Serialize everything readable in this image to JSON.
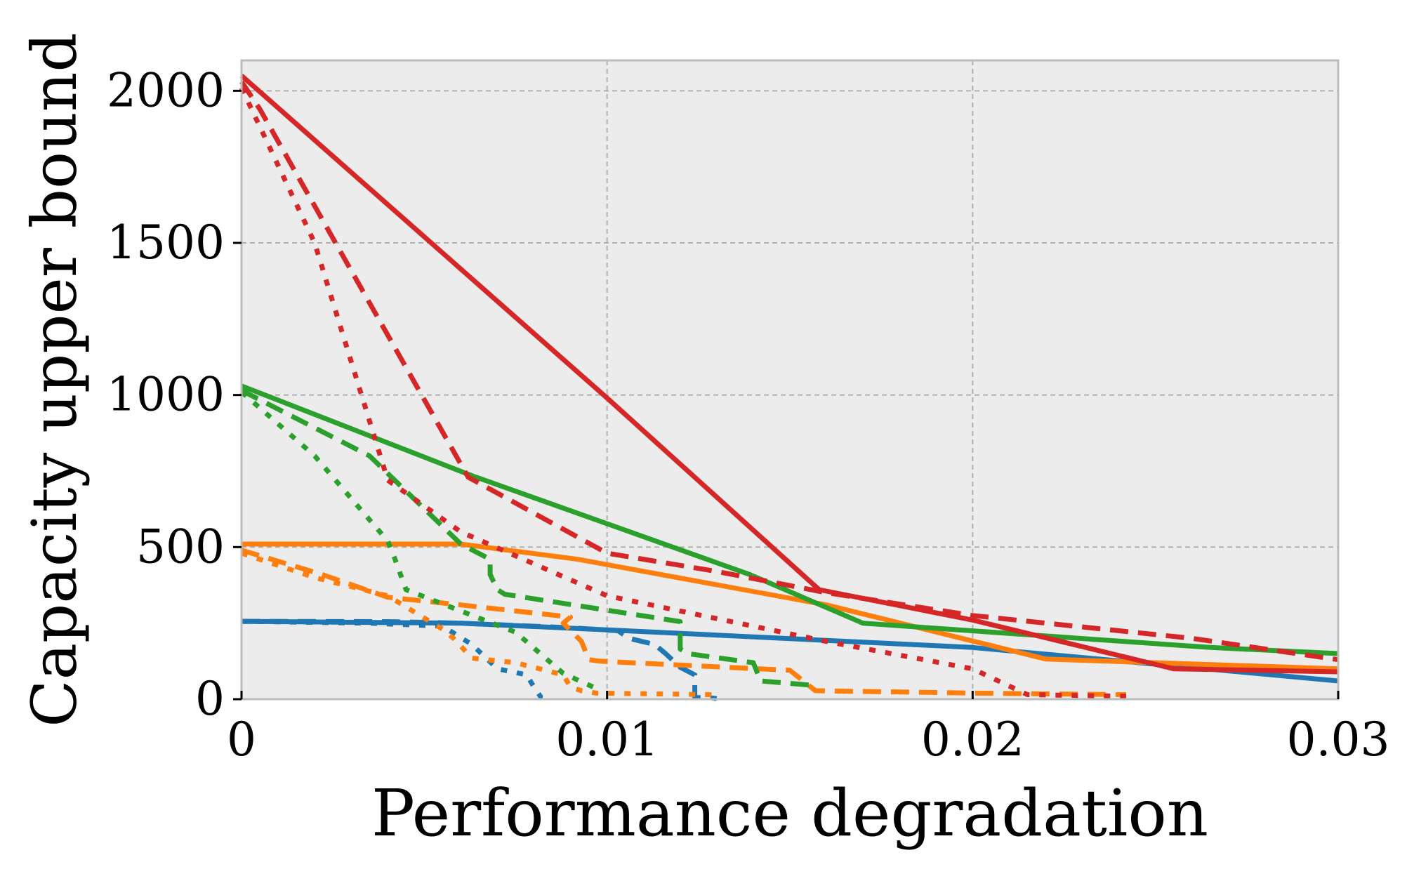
{
  "chart_data": {
    "type": "line",
    "title": "",
    "xlabel": "Performance degradation",
    "ylabel": "Capacity upper bound",
    "xlim": [
      0,
      0.03
    ],
    "ylim": [
      0,
      2100
    ],
    "xticks": [
      0,
      0.01,
      0.02,
      0.03
    ],
    "xtick_labels": [
      "0",
      "0.01",
      "0.02",
      "0.03"
    ],
    "yticks": [
      0,
      500,
      1000,
      1500,
      2000
    ],
    "ytick_labels": [
      "0",
      "500",
      "1000",
      "1500",
      "2000"
    ],
    "grid": true,
    "background_color": "#ececec",
    "series": [
      {
        "name": "blue-solid",
        "color": "#1f77b4",
        "style": "solid",
        "x": [
          0,
          0.006,
          0.01,
          0.02,
          0.03
        ],
        "y": [
          256,
          250,
          228,
          170,
          60
        ]
      },
      {
        "name": "blue-dashed",
        "color": "#1f77b4",
        "style": "dashed",
        "x": [
          0,
          0.004,
          0.006,
          0.009,
          0.0103,
          0.0106,
          0.0113,
          0.0116,
          0.012,
          0.0124,
          0.0124,
          0.0126,
          0.0128,
          0.013
        ],
        "y": [
          256,
          255,
          250,
          235,
          225,
          200,
          180,
          150,
          105,
          80,
          5,
          5,
          5,
          2
        ]
      },
      {
        "name": "blue-dotted",
        "color": "#1f77b4",
        "style": "dotted",
        "x": [
          0,
          0.0035,
          0.0055,
          0.0063,
          0.007,
          0.0078,
          0.008,
          0.0082,
          0.0085
        ],
        "y": [
          256,
          250,
          240,
          180,
          100,
          80,
          40,
          5,
          2
        ]
      },
      {
        "name": "orange-solid",
        "color": "#ff7f0e",
        "style": "solid",
        "x": [
          0,
          0.006,
          0.0092,
          0.016,
          0.022,
          0.03
        ],
        "y": [
          510,
          510,
          460,
          310,
          132,
          100
        ]
      },
      {
        "name": "orange-dashed",
        "color": "#ff7f0e",
        "style": "dashed",
        "x": [
          0,
          0.0022,
          0.004,
          0.006,
          0.009,
          0.0088,
          0.0093,
          0.0095,
          0.0098,
          0.011,
          0.015,
          0.0157,
          0.02,
          0.0215,
          0.0242
        ],
        "y": [
          490,
          410,
          335,
          310,
          270,
          250,
          190,
          130,
          125,
          118,
          95,
          28,
          20,
          18,
          15
        ]
      },
      {
        "name": "orange-dotted",
        "color": "#ff7f0e",
        "style": "dotted",
        "x": [
          0,
          0.002,
          0.004,
          0.0055,
          0.0058,
          0.0063,
          0.0075,
          0.0088,
          0.009,
          0.0093,
          0.0097,
          0.0128,
          0.013
        ],
        "y": [
          480,
          400,
          340,
          230,
          200,
          135,
          120,
          80,
          40,
          28,
          20,
          15,
          10
        ]
      },
      {
        "name": "green-solid",
        "color": "#2ca02c",
        "style": "solid",
        "x": [
          0,
          0.0063,
          0.0139,
          0.017,
          0.0265,
          0.03
        ],
        "y": [
          1030,
          735,
          410,
          250,
          170,
          150
        ]
      },
      {
        "name": "green-dashed",
        "color": "#2ca02c",
        "style": "dashed",
        "x": [
          0,
          0.0035,
          0.006,
          0.0068,
          0.0068,
          0.007,
          0.0072,
          0.012,
          0.012,
          0.0122,
          0.014,
          0.0142,
          0.0157
        ],
        "y": [
          1015,
          800,
          510,
          460,
          410,
          360,
          345,
          255,
          165,
          150,
          120,
          60,
          45
        ]
      },
      {
        "name": "green-dotted",
        "color": "#2ca02c",
        "style": "dotted",
        "x": [
          0,
          0.002,
          0.004,
          0.0042,
          0.0045,
          0.0075,
          0.0088,
          0.0098
        ],
        "y": [
          1010,
          800,
          520,
          460,
          360,
          220,
          85,
          30
        ]
      },
      {
        "name": "red-solid",
        "color": "#d62728",
        "style": "solid",
        "x": [
          0,
          0.01,
          0.0158,
          0.02,
          0.0255,
          0.03
        ],
        "y": [
          2050,
          990,
          360,
          260,
          100,
          90
        ]
      },
      {
        "name": "red-dashed",
        "color": "#d62728",
        "style": "dashed",
        "x": [
          0,
          0.0005,
          0.0062,
          0.01,
          0.013,
          0.016,
          0.02,
          0.026,
          0.03
        ],
        "y": [
          2030,
          1940,
          730,
          480,
          420,
          350,
          275,
          200,
          130
        ]
      },
      {
        "name": "red-dotted",
        "color": "#d62728",
        "style": "dotted",
        "x": [
          0,
          0.002,
          0.004,
          0.006,
          0.01,
          0.016,
          0.02,
          0.0215,
          0.023,
          0.0242
        ],
        "y": [
          2010,
          1500,
          720,
          550,
          340,
          190,
          100,
          15,
          12,
          10
        ]
      }
    ]
  }
}
